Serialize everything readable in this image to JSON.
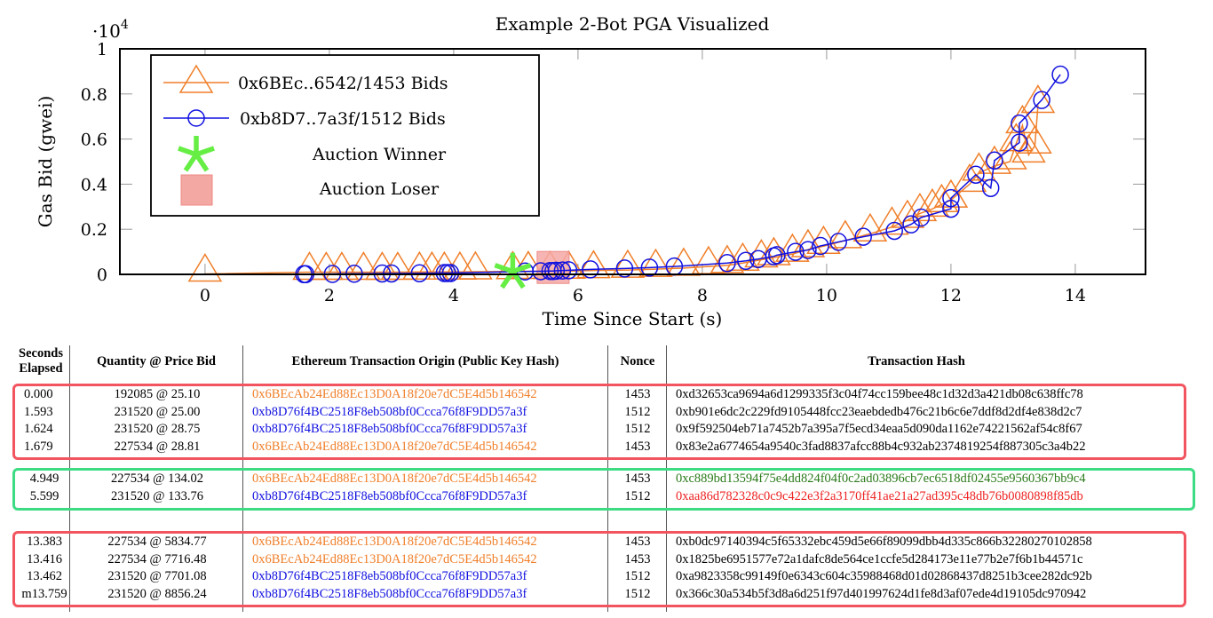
{
  "chart_data": {
    "type": "line",
    "title": "Example 2-Bot PGA Visualized",
    "xlabel": "Time Since Start (s)",
    "ylabel": "Gas Bid (gwei)",
    "y_multiplier": "·10",
    "y_multiplier_exp": "4",
    "xlim": [
      -1.37,
      15.13
    ],
    "ylim": [
      0,
      1
    ],
    "xticks": [
      0,
      2,
      4,
      6,
      8,
      10,
      12,
      14
    ],
    "xtick_labels": [
      "0",
      "2",
      "4",
      "6",
      "8",
      "10",
      "12",
      "14"
    ],
    "yticks": [
      0,
      0.2,
      0.4,
      0.6,
      0.8,
      1
    ],
    "ytick_labels": [
      "0",
      "0.2",
      "0.4",
      "0.6",
      "0.8",
      "1"
    ],
    "legend_position": "top-left",
    "series": [
      {
        "name": "0x6BEc..6542/1453 Bids",
        "color": "#f07f2a",
        "marker": "triangle",
        "x": [
          0.0,
          1.68,
          1.95,
          2.2,
          2.55,
          2.85,
          3.1,
          3.45,
          3.65,
          3.85,
          4.1,
          4.35,
          4.95,
          5.2,
          5.55,
          5.85,
          6.25,
          6.8,
          7.25,
          7.7,
          8.1,
          8.4,
          8.65,
          8.95,
          9.15,
          9.45,
          9.7,
          9.95,
          10.3,
          10.7,
          11.05,
          11.3,
          11.5,
          11.7,
          11.85,
          12.0,
          12.3,
          12.45,
          12.7,
          12.95,
          13.05,
          13.15,
          13.25,
          13.35,
          13.4
        ],
        "y": [
          0.002,
          0.01,
          0.01,
          0.01,
          0.01,
          0.01,
          0.01,
          0.011,
          0.011,
          0.011,
          0.011,
          0.012,
          0.013,
          0.014,
          0.014,
          0.015,
          0.017,
          0.019,
          0.023,
          0.028,
          0.035,
          0.04,
          0.05,
          0.065,
          0.075,
          0.09,
          0.11,
          0.125,
          0.15,
          0.18,
          0.21,
          0.24,
          0.27,
          0.29,
          0.31,
          0.33,
          0.4,
          0.45,
          0.48,
          0.5,
          0.58,
          0.66,
          0.53,
          0.57,
          0.75
        ]
      },
      {
        "name": "0xb8D7..7a3f/1512 Bids",
        "color": "#1010e0",
        "marker": "circle",
        "x": [
          1.59,
          1.62,
          2.05,
          2.4,
          2.85,
          3.0,
          3.45,
          3.85,
          3.9,
          3.95,
          5.15,
          5.4,
          5.55,
          5.6,
          5.65,
          5.75,
          5.85,
          6.2,
          6.75,
          7.15,
          7.55,
          8.4,
          8.7,
          8.9,
          9.15,
          9.2,
          9.5,
          9.7,
          9.9,
          10.19,
          10.59,
          11.09,
          11.36,
          11.52,
          12.0,
          12.0,
          12.4,
          12.64,
          12.7,
          13.1,
          13.1,
          13.46,
          13.76
        ],
        "y": [
          0.001,
          0.001,
          0.002,
          0.003,
          0.004,
          0.004,
          0.005,
          0.006,
          0.006,
          0.006,
          0.013,
          0.014,
          0.015,
          0.015,
          0.016,
          0.017,
          0.018,
          0.022,
          0.026,
          0.03,
          0.035,
          0.05,
          0.06,
          0.068,
          0.08,
          0.085,
          0.1,
          0.108,
          0.126,
          0.144,
          0.167,
          0.193,
          0.222,
          0.252,
          0.291,
          0.338,
          0.442,
          0.383,
          0.505,
          0.584,
          0.669,
          0.773,
          0.886
        ]
      }
    ],
    "markers": [
      {
        "name": "Auction Winner",
        "color": "#66ee44",
        "shape": "asterisk",
        "x": 4.95,
        "y": 0.013
      },
      {
        "name": "Auction Loser",
        "color": "#f08080",
        "shape": "square",
        "x": 5.6,
        "y": 0.015
      }
    ]
  },
  "table": {
    "headers": {
      "seconds": [
        "Seconds",
        "Elapsed"
      ],
      "quantity": "Quantity @ Price Bid",
      "origin": "Ethereum Transaction Origin (Public Key Hash)",
      "nonce": "Nonce",
      "hash": "Transaction Hash"
    },
    "ellipsis": "...",
    "groups": [
      {
        "box": "red",
        "rows": [
          {
            "seconds": "0.000",
            "quantity": "192085 @ 25.10",
            "origin": "0x6BEcAb24Ed88Ec13D0A18f20e7dC5E4d5b146542",
            "origin_color": "orange",
            "nonce": "1453",
            "hash": "0xd32653ca9694a6d1299335f3c04f74cc159bee48c1d32d3a421db08c638ffc78",
            "hash_color": "black"
          },
          {
            "seconds": "1.593",
            "quantity": "231520 @ 25.00",
            "origin": "0xb8D76f4BC2518F8eb508bf0Ccca76f8F9DD57a3f",
            "origin_color": "blue",
            "nonce": "1512",
            "hash": "0xb901e6dc2c229fd9105448fcc23eaebdedb476c21b6c6e7ddf8d2df4e838d2c7",
            "hash_color": "black"
          },
          {
            "seconds": "1.624",
            "quantity": "231520 @ 28.75",
            "origin": "0xb8D76f4BC2518F8eb508bf0Ccca76f8F9DD57a3f",
            "origin_color": "blue",
            "nonce": "1512",
            "hash": "0x9f592504eb71a7452b7a395a7f5ecd34eaa5d090da1162e74221562af54c8f67",
            "hash_color": "black"
          },
          {
            "seconds": "1.679",
            "quantity": "227534 @ 28.81",
            "origin": "0x6BEcAb24Ed88Ec13D0A18f20e7dC5E4d5b146542",
            "origin_color": "orange",
            "nonce": "1453",
            "hash": "0x83e2a6774654a9540c3fad8837afcc88b4c932ab2374819254f887305c3a4b22",
            "hash_color": "black"
          }
        ]
      },
      {
        "box": "green",
        "rows": [
          {
            "seconds": "4.949",
            "quantity": "227534 @ 134.02",
            "origin": "0x6BEcAb24Ed88Ec13D0A18f20e7dC5E4d5b146542",
            "origin_color": "orange",
            "nonce": "1453",
            "hash": "0xc889bd13594f75e4dd824f04f0c2ad03896cb7ec6518df02455e9560367bb9c4",
            "hash_color": "green"
          },
          {
            "seconds": "5.599",
            "quantity": "231520 @ 133.76",
            "origin": "0xb8D76f4BC2518F8eb508bf0Ccca76f8F9DD57a3f",
            "origin_color": "blue",
            "nonce": "1512",
            "hash": "0xaa86d782328c0c9c422e3f2a3170ff41ae21a27ad395c48db76b0080898f85db",
            "hash_color": "red"
          }
        ]
      },
      {
        "box": "red",
        "rows": [
          {
            "seconds": "13.383",
            "quantity": "227534 @ 5834.77",
            "origin": "0x6BEcAb24Ed88Ec13D0A18f20e7dC5E4d5b146542",
            "origin_color": "orange",
            "nonce": "1453",
            "hash": "0xb0dc97140394c5f65332ebc459d5e66f89099dbb4d335c866b32280270102858",
            "hash_color": "black"
          },
          {
            "seconds": "13.416",
            "quantity": "227534 @ 7716.48",
            "origin": "0x6BEcAb24Ed88Ec13D0A18f20e7dC5E4d5b146542",
            "origin_color": "orange",
            "nonce": "1453",
            "hash": "0x1825be6951577e72a1dafc8de564ce1ccfe5d284173e11e77b2e7f6b1b44571c",
            "hash_color": "black"
          },
          {
            "seconds": "13.462",
            "quantity": "231520 @ 7701.08",
            "origin": "0xb8D76f4BC2518F8eb508bf0Ccca76f8F9DD57a3f",
            "origin_color": "blue",
            "nonce": "1512",
            "hash": "0xa9823358c99149f0e6343c604c35988468d01d02868437d8251b3cee282dc92b",
            "hash_color": "black"
          },
          {
            "seconds": "m13.759",
            "quantity": "231520 @ 8856.24",
            "origin": "0xb8D76f4BC2518F8eb508bf0Ccca76f8F9DD57a3f",
            "origin_color": "blue",
            "nonce": "1512",
            "hash": "0x366c30a534b5f3d8a6d251f97d401997624d1fe8d3af07ede4d19105dc970942",
            "hash_color": "black"
          }
        ]
      }
    ]
  }
}
